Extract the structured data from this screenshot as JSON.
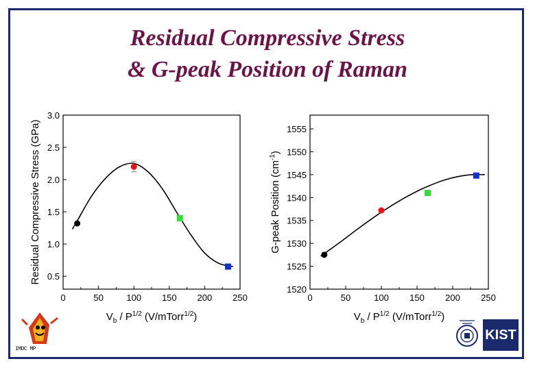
{
  "title_line1": "Residual Compressive Stress",
  "title_line2": "& G-peak Position of Raman",
  "logos": {
    "left_logo_text": "IMDC MP",
    "right_logo_text": "KIST"
  },
  "chart_data": [
    {
      "type": "scatter",
      "title": "",
      "xlabel_base": "V",
      "xlabel_sub": "b",
      "xlabel_mid": " / P",
      "xlabel_sup": "1/2",
      "xlabel_unit": "  (V/mTorr",
      "xlabel_unit_sup": "1/2",
      "xlabel_end": ")",
      "ylabel": "Residual Compressive Stress (GPa)",
      "xlim": [
        0,
        250
      ],
      "ylim": [
        0.3,
        3.0
      ],
      "xticks": [
        "0",
        "50",
        "100",
        "150",
        "200",
        "250"
      ],
      "yticks": [
        "0.5",
        "1.0",
        "1.5",
        "2.0",
        "2.5",
        "3.0"
      ],
      "points": [
        {
          "x": 20,
          "y": 1.32,
          "color": "#000000",
          "shape": "circle"
        },
        {
          "x": 100,
          "y": 2.2,
          "color": "#ee1111",
          "shape": "circle",
          "error": 0.08
        },
        {
          "x": 165,
          "y": 1.4,
          "color": "#33dd33",
          "shape": "square"
        },
        {
          "x": 233,
          "y": 0.65,
          "color": "#1133cc",
          "shape": "square"
        }
      ],
      "fit_curve": [
        [
          13,
          1.23
        ],
        [
          20,
          1.36
        ],
        [
          40,
          1.74
        ],
        [
          60,
          2.02
        ],
        [
          80,
          2.2
        ],
        [
          100,
          2.25
        ],
        [
          120,
          2.12
        ],
        [
          140,
          1.86
        ],
        [
          160,
          1.5
        ],
        [
          180,
          1.15
        ],
        [
          200,
          0.86
        ],
        [
          220,
          0.7
        ],
        [
          240,
          0.65
        ]
      ]
    },
    {
      "type": "scatter",
      "title": "",
      "xlabel_base": "V",
      "xlabel_sub": "b",
      "xlabel_mid": " / P",
      "xlabel_sup": "1/2",
      "xlabel_unit": "  (V/mTorr",
      "xlabel_unit_sup": "1/2",
      "xlabel_end": ")",
      "ylabel": "G-peak Position (cm",
      "ylabel_sup": "-1",
      "ylabel_end": ")",
      "xlim": [
        0,
        250
      ],
      "ylim": [
        1520,
        1558
      ],
      "xticks": [
        "0",
        "50",
        "100",
        "150",
        "200",
        "250"
      ],
      "yticks": [
        "1520",
        "1525",
        "1530",
        "1535",
        "1540",
        "1545",
        "1550",
        "1555"
      ],
      "points": [
        {
          "x": 20,
          "y": 1527.5,
          "color": "#000000",
          "shape": "circle"
        },
        {
          "x": 100,
          "y": 1537.2,
          "color": "#ee1111",
          "shape": "circle"
        },
        {
          "x": 165,
          "y": 1541.0,
          "color": "#33dd33",
          "shape": "square"
        },
        {
          "x": 233,
          "y": 1544.8,
          "color": "#1133cc",
          "shape": "square"
        }
      ],
      "fit_curve": [
        [
          15,
          1527.2
        ],
        [
          40,
          1530.0
        ],
        [
          70,
          1533.5
        ],
        [
          100,
          1536.8
        ],
        [
          130,
          1539.7
        ],
        [
          160,
          1542.1
        ],
        [
          190,
          1543.9
        ],
        [
          220,
          1544.9
        ],
        [
          245,
          1545.0
        ]
      ]
    }
  ]
}
